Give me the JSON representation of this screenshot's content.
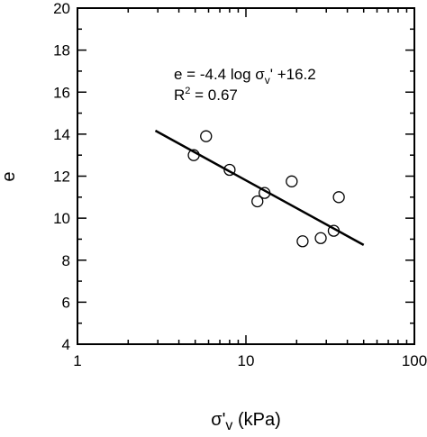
{
  "chart_data": {
    "type": "scatter",
    "x_scale": "log",
    "xlim": [
      1,
      100
    ],
    "ylim": [
      4,
      20
    ],
    "x_ticks": [
      "1",
      "10",
      "100"
    ],
    "y_ticks": [
      "4",
      "6",
      "8",
      "10",
      "12",
      "14",
      "16",
      "18",
      "20"
    ],
    "xlabel": {
      "main": "σ'",
      "sub": "v",
      "rest": " (kPa)"
    },
    "ylabel": "e",
    "grid": false,
    "marker": "open-circle",
    "points": [
      {
        "x": 4.9,
        "y": 13.0
      },
      {
        "x": 5.8,
        "y": 13.9
      },
      {
        "x": 8.0,
        "y": 12.3
      },
      {
        "x": 11.7,
        "y": 10.8
      },
      {
        "x": 12.9,
        "y": 11.2
      },
      {
        "x": 18.7,
        "y": 11.75
      },
      {
        "x": 21.7,
        "y": 8.9
      },
      {
        "x": 27.8,
        "y": 9.05
      },
      {
        "x": 33.2,
        "y": 9.4
      },
      {
        "x": 35.6,
        "y": 11.0
      }
    ],
    "fit_line": {
      "x_start": 2.9,
      "x_end": 50,
      "slope": -4.4,
      "intercept": 16.2
    },
    "equation": {
      "prefix": "e = -4.4 log σ",
      "sub": "v",
      "suffix": "' +16.2"
    },
    "r2": {
      "prefix": "R",
      "sup": "2",
      "suffix": " = 0.67"
    }
  }
}
